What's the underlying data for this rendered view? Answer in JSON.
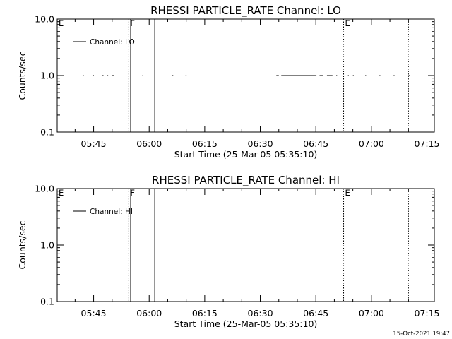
{
  "footer": {
    "timestamp": "15-Oct-2021 19:47"
  },
  "chart_data": [
    {
      "type": "line",
      "title": "RHESSI PARTICLE_RATE Channel: LO",
      "xlabel": "Start Time (25-Mar-05 05:35:10)",
      "ylabel": "Counts/sec",
      "y_scale": "log",
      "xlim": [
        "05:35:10",
        "07:17:00"
      ],
      "ylim": [
        0.1,
        10.0
      ],
      "x_ticks": [
        "05:45",
        "06:00",
        "06:15",
        "06:30",
        "06:45",
        "07:00",
        "07:15"
      ],
      "y_ticks": [
        "0.1",
        "1.0",
        "10.0"
      ],
      "legend": {
        "placement": "top-left"
      },
      "series": [
        {
          "name": "Channel: LO",
          "segments": [
            [
              "05:42:10",
              "05:42:20"
            ],
            [
              "05:44:50",
              "05:45:05"
            ],
            [
              "05:47:20",
              "05:47:40"
            ],
            [
              "05:48:40",
              "05:48:55"
            ],
            [
              "05:50:00",
              "05:50:35"
            ],
            [
              "05:58:10",
              "05:58:25"
            ],
            [
              "06:06:15",
              "06:06:30"
            ],
            [
              "06:09:50",
              "06:10:05"
            ],
            [
              "06:34:20",
              "06:35:00"
            ],
            [
              "06:35:40",
              "06:45:10"
            ],
            [
              "06:46:00",
              "06:47:00"
            ],
            [
              "06:48:00",
              "06:49:30"
            ],
            [
              "06:50:30",
              "06:50:45"
            ],
            [
              "06:53:40",
              "06:53:55"
            ],
            [
              "06:55:00",
              "06:55:15"
            ],
            [
              "06:58:20",
              "06:58:35"
            ],
            [
              "07:02:10",
              "07:02:25"
            ],
            [
              "07:06:00",
              "07:06:15"
            ],
            [
              "07:10:00",
              "07:10:20"
            ]
          ],
          "y": 1.0
        }
      ],
      "markers": [
        {
          "label": "E",
          "time": "05:35:10",
          "style": "dotted"
        },
        {
          "label": "F",
          "time": "05:54:30",
          "style": "dotted"
        },
        {
          "label": "",
          "time": "05:55:00",
          "style": "solid"
        },
        {
          "label": "",
          "time": "06:01:30",
          "style": "solid"
        },
        {
          "label": "E",
          "time": "06:52:30",
          "style": "dotted"
        },
        {
          "label": "",
          "time": "07:10:00",
          "style": "dotted"
        }
      ]
    },
    {
      "type": "line",
      "title": "RHESSI PARTICLE_RATE Channel: HI",
      "xlabel": "Start Time (25-Mar-05 05:35:10)",
      "ylabel": "Counts/sec",
      "y_scale": "log",
      "xlim": [
        "05:35:10",
        "07:17:00"
      ],
      "ylim": [
        0.1,
        10.0
      ],
      "x_ticks": [
        "05:45",
        "06:00",
        "06:15",
        "06:30",
        "06:45",
        "07:00",
        "07:15"
      ],
      "y_ticks": [
        "0.1",
        "1.0",
        "10.0"
      ],
      "legend": {
        "placement": "top-left"
      },
      "series": [
        {
          "name": "Channel: HI",
          "segments": [],
          "y": 1.0
        }
      ],
      "markers": [
        {
          "label": "E",
          "time": "05:35:10",
          "style": "dotted"
        },
        {
          "label": "F",
          "time": "05:54:30",
          "style": "dotted"
        },
        {
          "label": "",
          "time": "05:55:00",
          "style": "solid"
        },
        {
          "label": "",
          "time": "06:01:30",
          "style": "solid"
        },
        {
          "label": "E",
          "time": "06:52:30",
          "style": "dotted"
        },
        {
          "label": "",
          "time": "07:10:00",
          "style": "dotted"
        }
      ]
    }
  ]
}
